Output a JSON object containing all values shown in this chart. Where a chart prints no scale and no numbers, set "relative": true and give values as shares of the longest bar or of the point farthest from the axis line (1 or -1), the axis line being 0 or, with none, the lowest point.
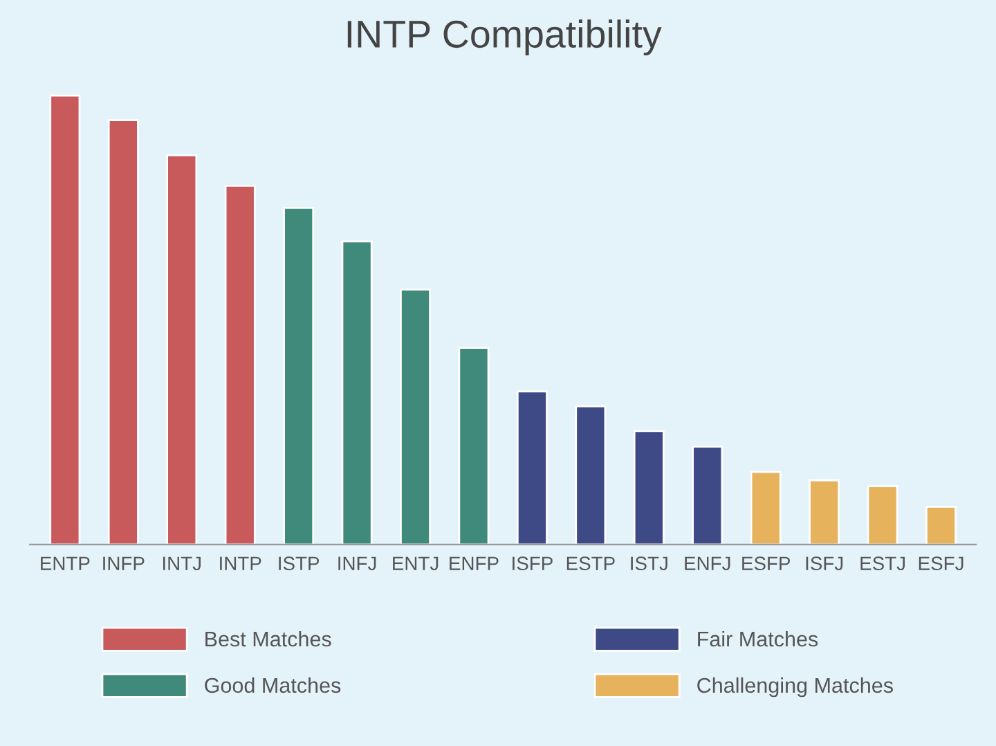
{
  "chart_data": {
    "type": "bar",
    "title": "INTP Compatibility",
    "relative": true,
    "categories": [
      "ENTP",
      "INFP",
      "INTJ",
      "INTP",
      "ISTP",
      "INFJ",
      "ENTJ",
      "ENFP",
      "ISFP",
      "ESTP",
      "ISTJ",
      "ENFJ",
      "ESFP",
      "ISFJ",
      "ESTJ",
      "ESFJ"
    ],
    "series": [
      {
        "name": "Best Matches",
        "color": "#c85a5c",
        "values": [
          1,
          0.945,
          0.867,
          0.799,
          null,
          null,
          null,
          null,
          null,
          null,
          null,
          null,
          null,
          null,
          null,
          null
        ]
      },
      {
        "name": "Good Matches",
        "color": "#3f8a7a",
        "values": [
          null,
          null,
          null,
          null,
          0.75,
          0.675,
          0.568,
          0.438,
          null,
          null,
          null,
          null,
          null,
          null,
          null,
          null
        ]
      },
      {
        "name": "Fair Matches",
        "color": "#3e4a86",
        "values": [
          null,
          null,
          null,
          null,
          null,
          null,
          null,
          null,
          0.341,
          0.308,
          0.253,
          0.218,
          null,
          null,
          null,
          null
        ]
      },
      {
        "name": "Challenging Matches",
        "color": "#e7b25c",
        "values": [
          null,
          null,
          null,
          null,
          null,
          null,
          null,
          null,
          null,
          null,
          null,
          null,
          0.162,
          0.143,
          0.13,
          0.084
        ]
      }
    ],
    "legend": "bottom",
    "grid": false
  }
}
